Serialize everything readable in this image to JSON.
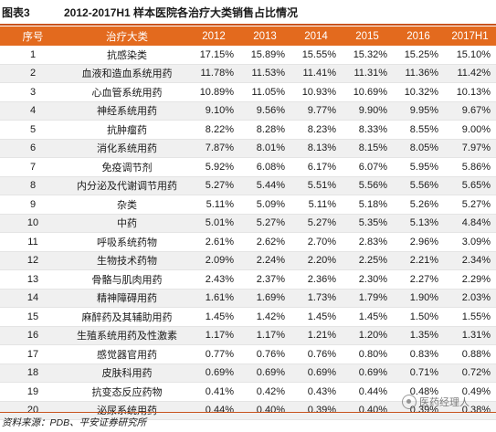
{
  "figure": {
    "label": "图表3",
    "title": "2012-2017H1 样本医院各治疗大类销售占比情况"
  },
  "table": {
    "headers": [
      "序号",
      "治疗大类",
      "2012",
      "2013",
      "2014",
      "2015",
      "2016",
      "2017H1"
    ],
    "rows": [
      [
        "1",
        "抗感染类",
        "17.15%",
        "15.89%",
        "15.55%",
        "15.32%",
        "15.25%",
        "15.10%"
      ],
      [
        "2",
        "血液和造血系统用药",
        "11.78%",
        "11.53%",
        "11.41%",
        "11.31%",
        "11.36%",
        "11.42%"
      ],
      [
        "3",
        "心血管系统用药",
        "10.89%",
        "11.05%",
        "10.93%",
        "10.69%",
        "10.32%",
        "10.13%"
      ],
      [
        "4",
        "神经系统用药",
        "9.10%",
        "9.56%",
        "9.77%",
        "9.90%",
        "9.95%",
        "9.67%"
      ],
      [
        "5",
        "抗肿瘤药",
        "8.22%",
        "8.28%",
        "8.23%",
        "8.33%",
        "8.55%",
        "9.00%"
      ],
      [
        "6",
        "消化系统用药",
        "7.87%",
        "8.01%",
        "8.13%",
        "8.15%",
        "8.05%",
        "7.97%"
      ],
      [
        "7",
        "免疫调节剂",
        "5.92%",
        "6.08%",
        "6.17%",
        "6.07%",
        "5.95%",
        "5.86%"
      ],
      [
        "8",
        "内分泌及代谢调节用药",
        "5.27%",
        "5.44%",
        "5.51%",
        "5.56%",
        "5.56%",
        "5.65%"
      ],
      [
        "9",
        "杂类",
        "5.11%",
        "5.09%",
        "5.11%",
        "5.18%",
        "5.26%",
        "5.27%"
      ],
      [
        "10",
        "中药",
        "5.01%",
        "5.27%",
        "5.27%",
        "5.35%",
        "5.13%",
        "4.84%"
      ],
      [
        "11",
        "呼吸系统药物",
        "2.61%",
        "2.62%",
        "2.70%",
        "2.83%",
        "2.96%",
        "3.09%"
      ],
      [
        "12",
        "生物技术药物",
        "2.09%",
        "2.24%",
        "2.20%",
        "2.25%",
        "2.21%",
        "2.34%"
      ],
      [
        "13",
        "骨骼与肌肉用药",
        "2.43%",
        "2.37%",
        "2.36%",
        "2.30%",
        "2.27%",
        "2.29%"
      ],
      [
        "14",
        "精神障碍用药",
        "1.61%",
        "1.69%",
        "1.73%",
        "1.79%",
        "1.90%",
        "2.03%"
      ],
      [
        "15",
        "麻醉药及其辅助用药",
        "1.45%",
        "1.42%",
        "1.45%",
        "1.45%",
        "1.50%",
        "1.55%"
      ],
      [
        "16",
        "生殖系统用药及性激素",
        "1.17%",
        "1.17%",
        "1.21%",
        "1.20%",
        "1.35%",
        "1.31%"
      ],
      [
        "17",
        "感觉器官用药",
        "0.77%",
        "0.76%",
        "0.76%",
        "0.80%",
        "0.83%",
        "0.88%"
      ],
      [
        "18",
        "皮肤科用药",
        "0.69%",
        "0.69%",
        "0.69%",
        "0.69%",
        "0.71%",
        "0.72%"
      ],
      [
        "19",
        "抗变态反应药物",
        "0.41%",
        "0.42%",
        "0.43%",
        "0.44%",
        "0.48%",
        "0.49%"
      ],
      [
        "20",
        "泌尿系统用药",
        "0.44%",
        "0.40%",
        "0.39%",
        "0.40%",
        "0.39%",
        "0.38%"
      ]
    ]
  },
  "footnote": "资料来源：PDB、平安证券研究所",
  "watermark": {
    "text": "医药经理人",
    "icon": "wechat-logo-icon"
  },
  "colors": {
    "header_bg": "#e36a1e",
    "rule": "#c8531e",
    "stripe": "#f0f0f0"
  }
}
